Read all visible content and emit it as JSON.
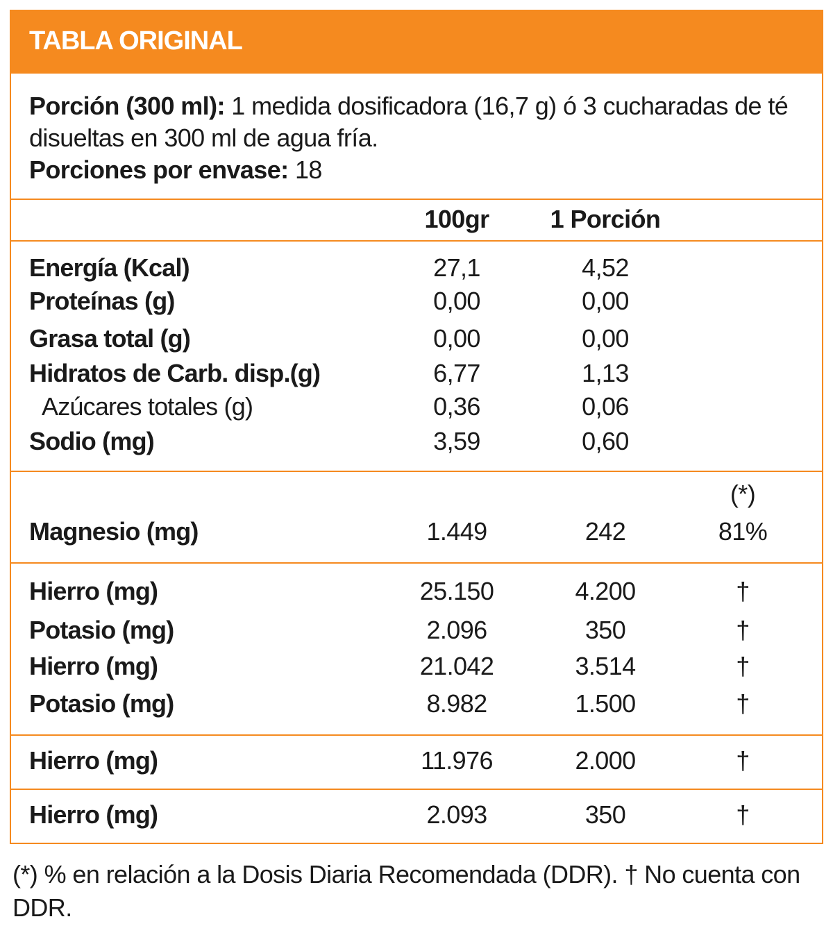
{
  "header": {
    "title": "TABLA ORIGINAL"
  },
  "serving": {
    "portion_label": "Porción (300 ml):",
    "portion_text": "1 medida dosificadora (16,7 g) ó 3 cucharadas de té disueltas en 300 ml de agua fría.",
    "servings_label": "Porciones por envase:",
    "servings_value": "18"
  },
  "table": {
    "columns": [
      "100gr",
      "1 Porción"
    ],
    "daily_note": "(*)",
    "groups": [
      {
        "rows": [
          [
            "Energía (Kcal)",
            "27,1",
            "4,52"
          ],
          [
            "Proteínas (g)",
            "0,00",
            "0,00"
          ],
          [
            "Grasa total (g)",
            "0,00",
            "0,00"
          ],
          [
            "Hidratos de Carb. disp.(g)",
            "6,77",
            "1,13"
          ],
          [
            "Azúcares totales (g)",
            "0,36",
            "0,06"
          ],
          [
            "Sodio (mg)",
            "3,59",
            "0,60"
          ]
        ]
      },
      {
        "rows": [
          [
            "Magnesio (mg)",
            "1.449",
            "242",
            "81%"
          ]
        ]
      },
      {
        "rows": [
          [
            "Hierro (mg)",
            "25.150",
            "4.200",
            "†"
          ],
          [
            "Potasio (mg)",
            "2.096",
            "350",
            "†"
          ],
          [
            "Hierro (mg)",
            "21.042",
            "3.514",
            "†"
          ],
          [
            "Potasio (mg)",
            "8.982",
            "1.500",
            "†"
          ]
        ]
      },
      {
        "rows": [
          [
            "Hierro (mg)",
            "11.976",
            "2.000",
            "†"
          ]
        ]
      },
      {
        "rows": [
          [
            "Hierro (mg)",
            "2.093",
            "350",
            "†"
          ]
        ]
      }
    ]
  },
  "footnote": "(*) % en relación a la Dosis Diaria Recomendada (DDR). † No cuenta con DDR."
}
